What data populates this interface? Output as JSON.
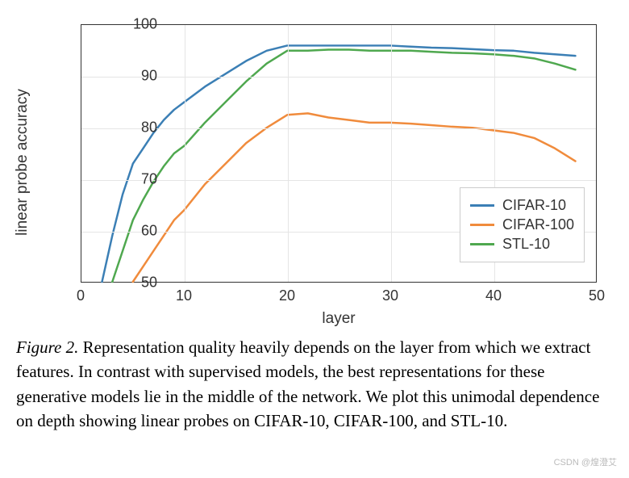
{
  "chart": {
    "type": "line",
    "xlabel": "layer",
    "ylabel": "linear probe accuracy",
    "xlim": [
      0,
      50
    ],
    "ylim": [
      50,
      100
    ],
    "xtick_step": 10,
    "ytick_step": 10,
    "xticks": [
      0,
      10,
      20,
      30,
      40,
      50
    ],
    "yticks": [
      50,
      60,
      70,
      80,
      90,
      100
    ],
    "grid": true,
    "grid_color": "#e5e5e5",
    "background_color": "#ffffff",
    "border_color": "#333333",
    "label_fontsize": 19,
    "tick_fontsize": 18,
    "line_width": 2.5,
    "legend": {
      "position": "lower-right",
      "items": [
        "CIFAR-10",
        "CIFAR-100",
        "STL-10"
      ],
      "border_color": "#cccccc",
      "fontsize": 18
    },
    "series": [
      {
        "name": "CIFAR-10",
        "color": "#3b7fb5",
        "x": [
          2,
          3,
          4,
          5,
          6,
          7,
          8,
          9,
          10,
          12,
          14,
          16,
          18,
          20,
          22,
          24,
          26,
          28,
          30,
          32,
          34,
          36,
          38,
          40,
          42,
          44,
          46,
          48
        ],
        "y": [
          50,
          59,
          67,
          73,
          76,
          79,
          81.5,
          83.5,
          85,
          88,
          90.5,
          93,
          95,
          96,
          96,
          96,
          96,
          96,
          96,
          95.8,
          95.6,
          95.5,
          95.3,
          95.1,
          95,
          94.6,
          94.3,
          94
        ]
      },
      {
        "name": "CIFAR-100",
        "color": "#f08b3c",
        "x": [
          5,
          6,
          7,
          8,
          9,
          10,
          12,
          14,
          16,
          18,
          20,
          22,
          24,
          26,
          28,
          30,
          32,
          34,
          36,
          38,
          40,
          42,
          44,
          46,
          48
        ],
        "y": [
          50,
          53,
          56,
          59,
          62,
          64,
          69,
          73,
          77,
          80,
          82.5,
          82.8,
          82,
          81.5,
          81,
          81,
          80.8,
          80.5,
          80.2,
          80,
          79.5,
          79,
          78,
          76,
          73.5
        ]
      },
      {
        "name": "STL-10",
        "color": "#4fa84f",
        "x": [
          3,
          4,
          5,
          6,
          7,
          8,
          9,
          10,
          12,
          14,
          16,
          18,
          20,
          22,
          24,
          26,
          28,
          30,
          32,
          34,
          36,
          38,
          40,
          42,
          44,
          46,
          48
        ],
        "y": [
          50,
          56,
          62,
          66,
          69.5,
          72.5,
          75,
          76.5,
          81,
          85,
          89,
          92.5,
          95,
          95,
          95.2,
          95.2,
          95,
          95,
          95,
          94.8,
          94.6,
          94.5,
          94.3,
          94,
          93.5,
          92.5,
          91.3
        ]
      }
    ]
  },
  "caption": {
    "label": "Figure 2.",
    "text": "Representation quality heavily depends on the layer from which we extract features. In contrast with supervised models, the best representations for these generative models lie in the middle of the network. We plot this unimodal dependence on depth showing linear probes on CIFAR-10, CIFAR-100, and STL-10.",
    "fontsize": 21
  },
  "watermark": "CSDN @煌澄艾"
}
